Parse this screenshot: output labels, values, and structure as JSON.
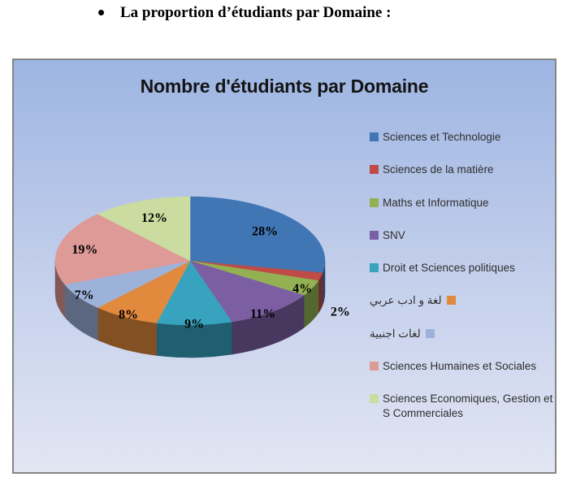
{
  "document": {
    "heading": "La proportion d’étudiants par Domaine :"
  },
  "chart": {
    "title": "Nombre d'étudiants par Domaine",
    "background_gradient_top": "#9DB5E2",
    "background_gradient_bottom": "#E2E6F3",
    "border_color": "#868686"
  },
  "chart_data": {
    "type": "pie",
    "title": "Nombre d'étudiants par Domaine",
    "effect": "3d",
    "labels_format": "percent",
    "unit": "%",
    "start_angle_deg": 0,
    "direction": "clockwise",
    "legend_position": "right",
    "slices": [
      {
        "label": "Sciences et Technologie",
        "value": 28,
        "color": "#4176B5",
        "rtl": false
      },
      {
        "label": "Sciences de la matière",
        "value": 2,
        "color": "#BE4B46",
        "rtl": false
      },
      {
        "label": "Maths et Informatique",
        "value": 4,
        "color": "#93B152",
        "rtl": false
      },
      {
        "label": "SNV",
        "value": 11,
        "color": "#7C5FA2",
        "rtl": false
      },
      {
        "label": "Droit et Sciences politiques",
        "value": 9,
        "color": "#38A3BF",
        "rtl": false
      },
      {
        "label": "لغة و ادب عربي",
        "value": 8,
        "color": "#E18A3E",
        "rtl": true
      },
      {
        "label": "لغات اجنبية",
        "value": 7,
        "color": "#9DB2D9",
        "rtl": true
      },
      {
        "label": "Sciences Humaines et Sociales",
        "value": 19,
        "color": "#DD9A97",
        "rtl": false
      },
      {
        "label": "Sciences Economiques, Gestion et S Commerciales",
        "value": 12,
        "color": "#CADC9F",
        "rtl": false
      }
    ]
  }
}
